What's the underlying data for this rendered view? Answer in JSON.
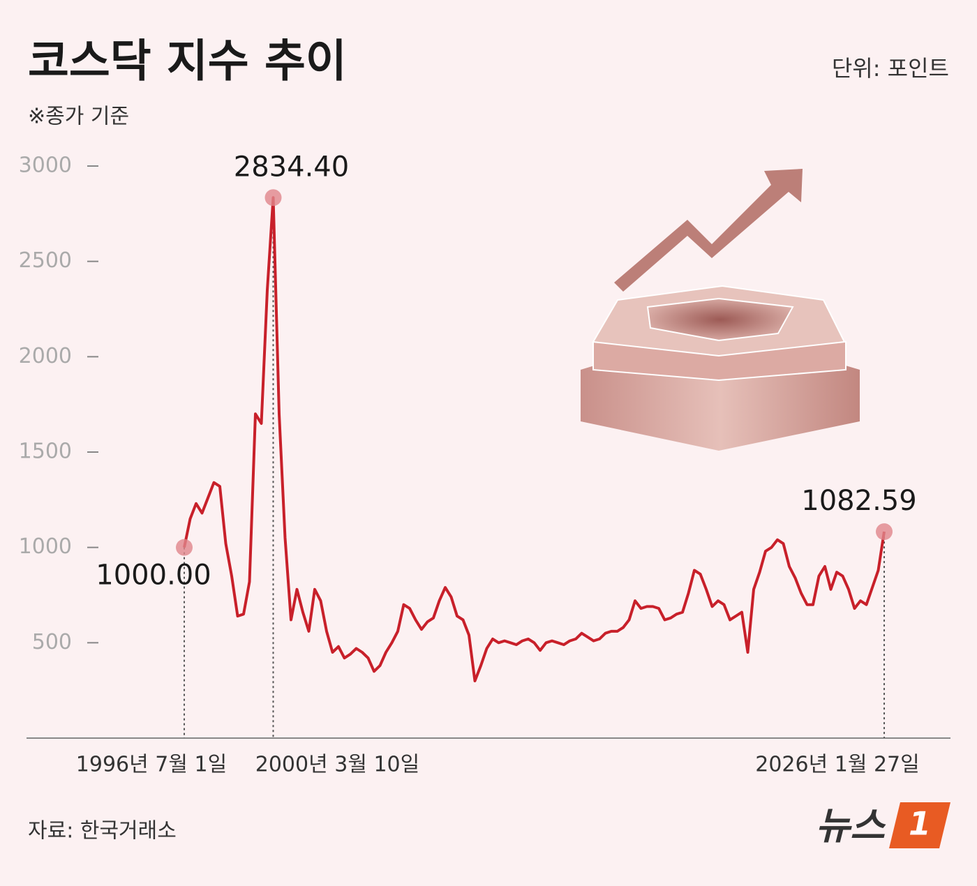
{
  "chart_data": {
    "type": "line",
    "title": "코스닥 지수 추이",
    "subtitle": "※종가 기준",
    "unit": "단위: 포인트",
    "source": "자료: 한국거래소",
    "logo": {
      "text": "뉴스",
      "mark": "1"
    },
    "categories": [
      "1996년 7월 1일",
      null,
      null,
      null,
      null,
      null,
      null,
      null,
      null,
      null,
      null,
      null,
      null,
      null,
      null,
      "2000년 3월 10일",
      null,
      null,
      null,
      null,
      null,
      null,
      null,
      null,
      null,
      null,
      null,
      null,
      null,
      null,
      null,
      null,
      null,
      null,
      null,
      null,
      null,
      null,
      null,
      null,
      null,
      null,
      null,
      null,
      null,
      null,
      null,
      null,
      null,
      null,
      null,
      null,
      null,
      null,
      null,
      null,
      null,
      null,
      null,
      null,
      null,
      null,
      null,
      null,
      null,
      null,
      null,
      null,
      null,
      null,
      null,
      null,
      null,
      null,
      null,
      null,
      null,
      null,
      null,
      null,
      null,
      null,
      null,
      null,
      null,
      null,
      null,
      null,
      null,
      null,
      null,
      null,
      null,
      null,
      null,
      null,
      null,
      null,
      null,
      null,
      null,
      null,
      null,
      null,
      null,
      null,
      null,
      null,
      null,
      null,
      null,
      null,
      null,
      null,
      null,
      null,
      null,
      null,
      "2026년 1월 27일"
    ],
    "series": [
      {
        "name": "코스닥",
        "color": "#c8202a",
        "values": [
          1000.0,
          1150,
          1230,
          1180,
          1260,
          1340,
          1320,
          1020,
          850,
          640,
          650,
          820,
          1700,
          1650,
          2350,
          2834.4,
          1700,
          1050,
          620,
          780,
          660,
          560,
          780,
          720,
          560,
          450,
          480,
          420,
          440,
          470,
          450,
          420,
          350,
          380,
          450,
          500,
          560,
          700,
          680,
          620,
          570,
          610,
          630,
          720,
          790,
          740,
          640,
          620,
          540,
          300,
          380,
          470,
          520,
          500,
          510,
          500,
          490,
          510,
          520,
          500,
          460,
          500,
          510,
          500,
          490,
          510,
          520,
          550,
          530,
          510,
          520,
          550,
          560,
          560,
          580,
          620,
          720,
          680,
          690,
          690,
          680,
          620,
          630,
          650,
          660,
          760,
          880,
          860,
          780,
          690,
          720,
          700,
          620,
          640,
          660,
          450,
          780,
          870,
          980,
          1000,
          1040,
          1020,
          900,
          840,
          760,
          700,
          700,
          850,
          900,
          780,
          870,
          850,
          780,
          680,
          720,
          700,
          790,
          880,
          1082.59
        ],
        "value_labels": [
          "1000.00",
          null,
          null,
          null,
          null,
          null,
          null,
          null,
          null,
          null,
          null,
          null,
          null,
          null,
          null,
          "2834.40",
          null,
          null,
          null,
          null,
          null,
          null,
          null,
          null,
          null,
          null,
          null,
          null,
          null,
          null,
          null,
          null,
          null,
          null,
          null,
          null,
          null,
          null,
          null,
          null,
          null,
          null,
          null,
          null,
          null,
          null,
          null,
          null,
          null,
          null,
          null,
          null,
          null,
          null,
          null,
          null,
          null,
          null,
          null,
          null,
          null,
          null,
          null,
          null,
          null,
          null,
          null,
          null,
          null,
          null,
          null,
          null,
          null,
          null,
          null,
          null,
          null,
          null,
          null,
          null,
          null,
          null,
          null,
          null,
          null,
          null,
          null,
          null,
          null,
          null,
          null,
          null,
          null,
          null,
          null,
          null,
          null,
          null,
          null,
          null,
          null,
          null,
          null,
          null,
          null,
          null,
          null,
          null,
          null,
          null,
          null,
          null,
          null,
          null,
          null,
          null,
          null,
          null,
          "1082.59"
        ]
      }
    ],
    "ylim": [
      0,
      3000
    ],
    "yticks": [
      500,
      1000,
      1500,
      2000,
      2500,
      3000
    ],
    "grid": false
  }
}
